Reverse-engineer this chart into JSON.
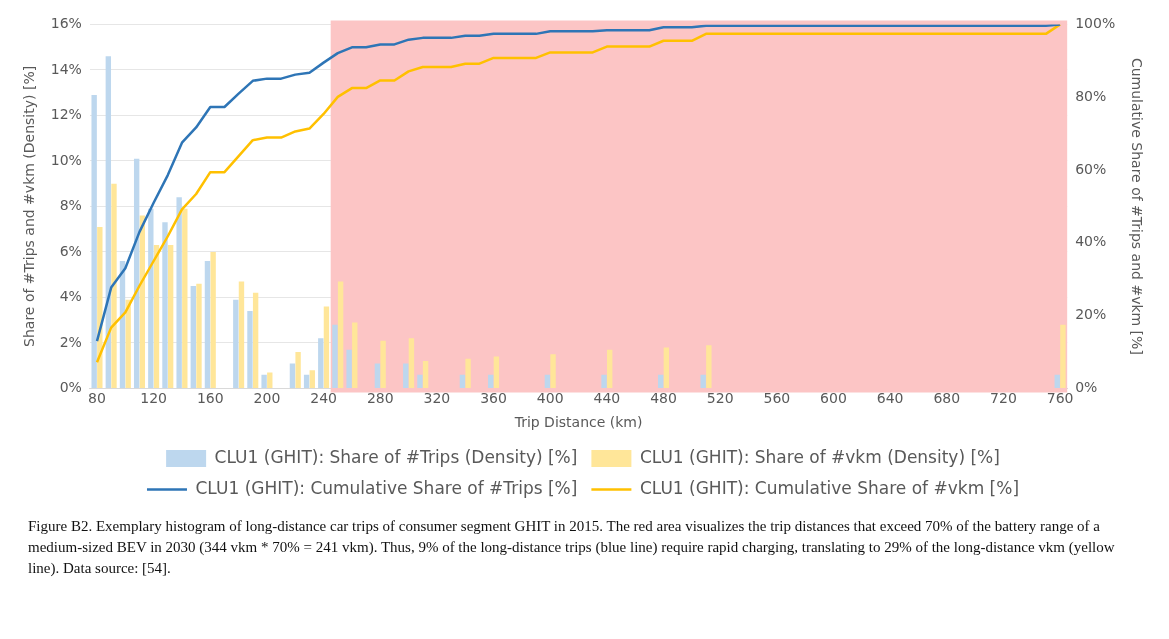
{
  "chart_data": {
    "type": "bar",
    "xlabel": "Trip Distance (km)",
    "ylabel": "Share of #Trips and #vkm (Density) [%]",
    "y2label": "Cumulative Share of #Trips and #vkm [%]",
    "x": [
      80,
      90,
      100,
      110,
      120,
      130,
      140,
      150,
      160,
      170,
      180,
      190,
      200,
      210,
      220,
      230,
      240,
      250,
      260,
      270,
      280,
      290,
      300,
      310,
      320,
      330,
      340,
      350,
      360,
      370,
      380,
      390,
      400,
      410,
      420,
      430,
      440,
      450,
      460,
      470,
      480,
      490,
      500,
      510,
      520,
      530,
      540,
      550,
      560,
      570,
      580,
      590,
      600,
      610,
      620,
      630,
      640,
      650,
      660,
      670,
      680,
      690,
      700,
      710,
      720,
      730,
      740,
      750,
      760
    ],
    "xlim": [
      75,
      765
    ],
    "xticks": [
      80,
      120,
      160,
      200,
      240,
      280,
      320,
      360,
      400,
      440,
      480,
      520,
      560,
      600,
      640,
      680,
      720,
      760
    ],
    "ylim": [
      0,
      16
    ],
    "yticks": [
      {
        "value": 0,
        "label": "0%"
      },
      {
        "value": 2,
        "label": "2%"
      },
      {
        "value": 4,
        "label": "4%"
      },
      {
        "value": 6,
        "label": "6%"
      },
      {
        "value": 8,
        "label": "8%"
      },
      {
        "value": 10,
        "label": "10%"
      },
      {
        "value": 12,
        "label": "12%"
      },
      {
        "value": 14,
        "label": "14%"
      },
      {
        "value": 16,
        "label": "16%"
      }
    ],
    "y2lim": [
      0,
      100
    ],
    "y2ticks": [
      {
        "value": 0,
        "label": "0%"
      },
      {
        "value": 20,
        "label": "20%"
      },
      {
        "value": 40,
        "label": "40%"
      },
      {
        "value": 60,
        "label": "60%"
      },
      {
        "value": 80,
        "label": "80%"
      },
      {
        "value": 100,
        "label": "100%"
      }
    ],
    "grid": "y",
    "legend": "bottom",
    "bands": [
      {
        "axis": "x",
        "from": 245,
        "to": 765,
        "color": "#fcc5c5"
      }
    ],
    "series": [
      {
        "name": "CLU1 (GHIT): Share of #Trips (Density) [%]",
        "color": "#bdd7ee",
        "values": [
          12.9,
          14.6,
          5.6,
          10.1,
          7.9,
          7.3,
          8.4,
          4.5,
          5.6,
          0,
          3.9,
          3.4,
          0.6,
          0,
          1.1,
          0.6,
          2.2,
          2.8,
          1.7,
          0,
          1.1,
          0,
          1.1,
          0.6,
          0,
          0,
          0.6,
          0,
          0.6,
          0,
          0,
          0,
          0.6,
          0,
          0,
          0,
          0.6,
          0,
          0,
          0,
          0.6,
          0,
          0,
          0.6,
          0,
          0,
          0,
          0,
          0,
          0,
          0,
          0,
          0,
          0,
          0,
          0,
          0,
          0,
          0,
          0,
          0,
          0,
          0,
          0,
          0,
          0,
          0,
          0,
          0.6
        ]
      },
      {
        "name": "CLU1 (GHIT): Share of #vkm (Density) [%]",
        "color": "#ffe699",
        "values": [
          7.1,
          9.0,
          3.9,
          7.6,
          6.3,
          6.3,
          7.9,
          4.6,
          6.0,
          0,
          4.7,
          4.2,
          0.7,
          0,
          1.6,
          0.8,
          3.6,
          4.7,
          2.9,
          0,
          2.1,
          0,
          2.2,
          1.2,
          0,
          0,
          1.3,
          0,
          1.4,
          0,
          0,
          0,
          1.5,
          0,
          0,
          0,
          1.7,
          0,
          0,
          0,
          1.8,
          0,
          0,
          1.9,
          0,
          0,
          0,
          0,
          0,
          0,
          0,
          0,
          0,
          0,
          0,
          0,
          0,
          0,
          0,
          0,
          0,
          0,
          0,
          0,
          0,
          0,
          0,
          0,
          2.8
        ]
      },
      {
        "name": "CLU1 (GHIT): Cumulative Share of #Trips [%]",
        "type": "line",
        "axis": "y2",
        "color": "#2e75b6",
        "values": [
          13,
          27.7,
          33,
          43,
          51,
          58.6,
          67.5,
          71.7,
          77.3,
          77.3,
          81,
          84.5,
          85.1,
          85.1,
          86.2,
          86.7,
          89.5,
          92.1,
          93.7,
          93.7,
          94.5,
          94.5,
          95.8,
          96.3,
          96.3,
          96.3,
          96.9,
          96.9,
          97.4,
          97.4,
          97.4,
          97.4,
          98.1,
          98.1,
          98.1,
          98.1,
          98.4,
          98.4,
          98.4,
          98.4,
          99.2,
          99.2,
          99.2,
          99.6,
          99.6,
          99.6,
          99.6,
          99.6,
          99.6,
          99.6,
          99.6,
          99.6,
          99.6,
          99.6,
          99.6,
          99.6,
          99.6,
          99.6,
          99.6,
          99.6,
          99.6,
          99.6,
          99.6,
          99.6,
          99.6,
          99.6,
          99.6,
          99.6,
          100
        ]
      },
      {
        "name": "CLU1 (GHIT): Cumulative Share of #vkm [%]",
        "type": "line",
        "axis": "y2",
        "color": "#ffc000",
        "values": [
          7.2,
          16.7,
          20.9,
          28.2,
          35,
          41.8,
          49.2,
          53.4,
          59.4,
          59.4,
          63.8,
          68.2,
          68.9,
          68.9,
          70.6,
          71.4,
          75.4,
          80.1,
          82.5,
          82.5,
          84.6,
          84.6,
          87.1,
          88.3,
          88.3,
          88.3,
          89.2,
          89.2,
          90.8,
          90.8,
          90.8,
          90.8,
          92.3,
          92.3,
          92.3,
          92.3,
          93.9,
          93.9,
          93.9,
          93.9,
          95.5,
          95.5,
          95.5,
          97.4,
          97.4,
          97.4,
          97.4,
          97.4,
          97.4,
          97.4,
          97.4,
          97.4,
          97.4,
          97.4,
          97.4,
          97.4,
          97.4,
          97.4,
          97.4,
          97.4,
          97.4,
          97.4,
          97.4,
          97.4,
          97.4,
          97.4,
          97.4,
          97.4,
          100
        ]
      }
    ],
    "annotations": [
      "Figure B2. Exemplary histogram of long-distance car trips of consumer segment GHIT in 2015. The red area visualizes the trip distances that exceed 70% of the battery range of a medium-sized BEV in 2030 (344 vkm * 70% = 241 vkm). Thus, 9% of the long-distance trips (blue line) require rapid charging, translating to 29% of the long-distance vkm (yellow line). Data source: [54]."
    ]
  }
}
